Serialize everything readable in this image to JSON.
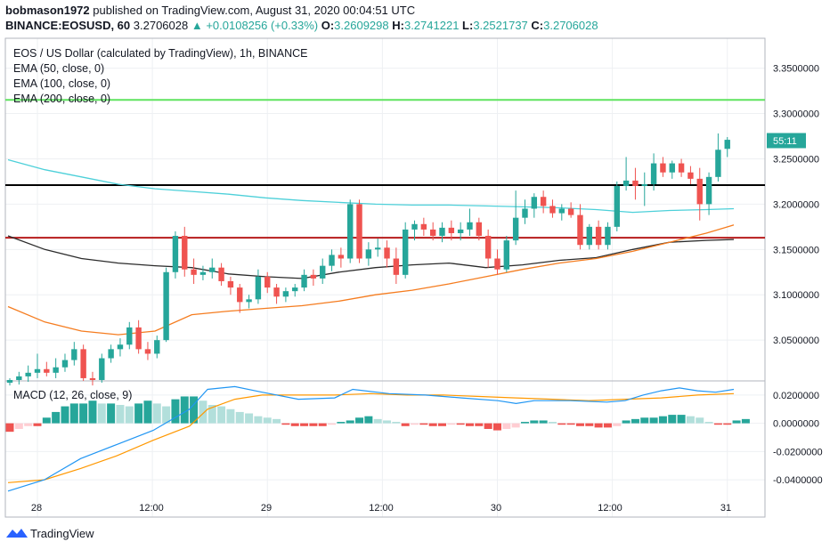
{
  "header": {
    "publisher": "bobmason1972",
    "published_text": "published on TradingView.com, August 31, 2020 00:04:51 UTC",
    "symbol": "BINANCE:EOSUSD, 60",
    "last": "3.2706028",
    "change": "▲ +0.0108256 (+0.33%)",
    "o_label": "O:",
    "o_val": "3.2609298",
    "h_label": "H:",
    "h_val": "3.2741221",
    "l_label": "L:",
    "l_val": "3.2521737",
    "c_label": "C:",
    "c_val": "3.2706028"
  },
  "legend": {
    "title": "EOS / US Dollar (calculated by TradingView), 1h, BINANCE",
    "ema50": "EMA (50, close, 0)",
    "ema100": "EMA (100, close, 0)",
    "ema200": "EMA (200, close, 0)",
    "macd": "MACD (12, 26, close, 9)"
  },
  "price_tag": "55:11",
  "footer": {
    "brand": "TradingView"
  },
  "colors": {
    "up": "#26a69a",
    "down": "#ef5350",
    "ema50": "#f57c1f",
    "ema100": "#2b2b2b",
    "ema200": "#4dd0d9",
    "support": "#b71c1c",
    "resistance": "#000000",
    "top_line": "#5fe35f",
    "macd_line": "#2196f3",
    "signal_line": "#ff9800"
  },
  "chart_data": {
    "type": "candlestick",
    "x_ticks": [
      "28",
      "12:00",
      "29",
      "12:00",
      "30",
      "12:00",
      "31"
    ],
    "y_ticks": [
      "3.3500000",
      "3.3000000",
      "3.2500000",
      "3.2000000",
      "3.1500000",
      "3.1000000",
      "3.0500000"
    ],
    "ylim": [
      3.005,
      3.383
    ],
    "horizontal_lines": [
      {
        "name": "top",
        "y": 3.315
      },
      {
        "name": "resistance",
        "y": 3.221
      },
      {
        "name": "support",
        "y": 3.163
      }
    ],
    "last_price": 3.2706028,
    "candles": [
      [
        3.003,
        3.008,
        3.0,
        3.006
      ],
      [
        3.006,
        3.015,
        3.001,
        3.01
      ],
      [
        3.01,
        3.022,
        3.004,
        3.014
      ],
      [
        3.014,
        3.035,
        3.008,
        3.018
      ],
      [
        3.018,
        3.026,
        3.01,
        3.014
      ],
      [
        3.014,
        3.03,
        3.008,
        3.02
      ],
      [
        3.02,
        3.035,
        3.015,
        3.028
      ],
      [
        3.028,
        3.048,
        3.022,
        3.04
      ],
      [
        3.04,
        3.045,
        3.005,
        3.008
      ],
      [
        3.008,
        3.015,
        3.0,
        3.006
      ],
      [
        3.006,
        3.035,
        3.003,
        3.03
      ],
      [
        3.03,
        3.045,
        3.025,
        3.04
      ],
      [
        3.04,
        3.052,
        3.032,
        3.045
      ],
      [
        3.045,
        3.07,
        3.04,
        3.064
      ],
      [
        3.064,
        3.072,
        3.035,
        3.04
      ],
      [
        3.04,
        3.048,
        3.028,
        3.035
      ],
      [
        3.035,
        3.055,
        3.03,
        3.05
      ],
      [
        3.05,
        3.13,
        3.048,
        3.125
      ],
      [
        3.125,
        3.17,
        3.118,
        3.165
      ],
      [
        3.165,
        3.175,
        3.12,
        3.128
      ],
      [
        3.128,
        3.14,
        3.112,
        3.122
      ],
      [
        3.122,
        3.132,
        3.116,
        3.125
      ],
      [
        3.125,
        3.14,
        3.118,
        3.13
      ],
      [
        3.13,
        3.135,
        3.11,
        3.115
      ],
      [
        3.115,
        3.12,
        3.1,
        3.108
      ],
      [
        3.108,
        3.112,
        3.08,
        3.092
      ],
      [
        3.092,
        3.1,
        3.085,
        3.095
      ],
      [
        3.095,
        3.128,
        3.09,
        3.12
      ],
      [
        3.12,
        3.125,
        3.102,
        3.108
      ],
      [
        3.108,
        3.112,
        3.09,
        3.098
      ],
      [
        3.098,
        3.108,
        3.092,
        3.104
      ],
      [
        3.104,
        3.112,
        3.098,
        3.108
      ],
      [
        3.108,
        3.128,
        3.104,
        3.122
      ],
      [
        3.122,
        3.128,
        3.11,
        3.118
      ],
      [
        3.118,
        3.14,
        3.112,
        3.132
      ],
      [
        3.132,
        3.15,
        3.126,
        3.144
      ],
      [
        3.144,
        3.152,
        3.13,
        3.14
      ],
      [
        3.14,
        3.205,
        3.135,
        3.2
      ],
      [
        3.2,
        3.205,
        3.135,
        3.14
      ],
      [
        3.14,
        3.158,
        3.132,
        3.15
      ],
      [
        3.15,
        3.162,
        3.142,
        3.152
      ],
      [
        3.152,
        3.16,
        3.13,
        3.14
      ],
      [
        3.14,
        3.152,
        3.112,
        3.122
      ],
      [
        3.122,
        3.18,
        3.118,
        3.172
      ],
      [
        3.172,
        3.182,
        3.16,
        3.178
      ],
      [
        3.178,
        3.185,
        3.165,
        3.172
      ],
      [
        3.172,
        3.18,
        3.16,
        3.165
      ],
      [
        3.165,
        3.18,
        3.158,
        3.174
      ],
      [
        3.174,
        3.182,
        3.16,
        3.168
      ],
      [
        3.168,
        3.18,
        3.16,
        3.172
      ],
      [
        3.172,
        3.195,
        3.165,
        3.18
      ],
      [
        3.18,
        3.185,
        3.16,
        3.165
      ],
      [
        3.165,
        3.172,
        3.13,
        3.14
      ],
      [
        3.14,
        3.15,
        3.122,
        3.128
      ],
      [
        3.128,
        3.165,
        3.125,
        3.16
      ],
      [
        3.16,
        3.215,
        3.155,
        3.185
      ],
      [
        3.185,
        3.205,
        3.178,
        3.195
      ],
      [
        3.195,
        3.212,
        3.185,
        3.208
      ],
      [
        3.208,
        3.215,
        3.19,
        3.198
      ],
      [
        3.198,
        3.205,
        3.185,
        3.19
      ],
      [
        3.19,
        3.2,
        3.182,
        3.195
      ],
      [
        3.195,
        3.202,
        3.185,
        3.188
      ],
      [
        3.188,
        3.2,
        3.15,
        3.155
      ],
      [
        3.155,
        3.178,
        3.15,
        3.175
      ],
      [
        3.175,
        3.182,
        3.15,
        3.155
      ],
      [
        3.155,
        3.18,
        3.15,
        3.175
      ],
      [
        3.175,
        3.225,
        3.17,
        3.22
      ],
      [
        3.22,
        3.252,
        3.215,
        3.226
      ],
      [
        3.226,
        3.24,
        3.205,
        3.22
      ],
      [
        3.22,
        3.235,
        3.198,
        3.222
      ],
      [
        3.222,
        3.256,
        3.215,
        3.245
      ],
      [
        3.245,
        3.252,
        3.23,
        3.235
      ],
      [
        3.235,
        3.248,
        3.228,
        3.245
      ],
      [
        3.245,
        3.25,
        3.23,
        3.235
      ],
      [
        3.235,
        3.242,
        3.222,
        3.228
      ],
      [
        3.228,
        3.24,
        3.182,
        3.2
      ],
      [
        3.2,
        3.235,
        3.188,
        3.23
      ],
      [
        3.23,
        3.278,
        3.225,
        3.26
      ],
      [
        3.261,
        3.274,
        3.252,
        3.271
      ]
    ],
    "ema50": [
      [
        0,
        3.165
      ],
      [
        4,
        3.15
      ],
      [
        8,
        3.14
      ],
      [
        12,
        3.135
      ],
      [
        16,
        3.132
      ],
      [
        20,
        3.13
      ],
      [
        24,
        3.123
      ],
      [
        28,
        3.12
      ],
      [
        32,
        3.118
      ],
      [
        36,
        3.125
      ],
      [
        40,
        3.13
      ],
      [
        44,
        3.133
      ],
      [
        48,
        3.135
      ],
      [
        52,
        3.13
      ],
      [
        56,
        3.133
      ],
      [
        60,
        3.138
      ],
      [
        64,
        3.141
      ],
      [
        68,
        3.15
      ],
      [
        72,
        3.158
      ],
      [
        76,
        3.16
      ],
      [
        79,
        3.161
      ]
    ],
    "ema100": [
      [
        0,
        3.249
      ],
      [
        4,
        3.238
      ],
      [
        8,
        3.23
      ],
      [
        12,
        3.222
      ],
      [
        16,
        3.217
      ],
      [
        20,
        3.214
      ],
      [
        24,
        3.211
      ],
      [
        28,
        3.207
      ],
      [
        32,
        3.204
      ],
      [
        36,
        3.202
      ],
      [
        40,
        3.2
      ],
      [
        44,
        3.199
      ],
      [
        48,
        3.199
      ],
      [
        52,
        3.198
      ],
      [
        56,
        3.197
      ],
      [
        60,
        3.196
      ],
      [
        64,
        3.194
      ],
      [
        68,
        3.191
      ],
      [
        72,
        3.193
      ],
      [
        76,
        3.194
      ],
      [
        79,
        3.195
      ]
    ],
    "ema200": [
      [
        0,
        3.087
      ],
      [
        4,
        3.07
      ],
      [
        8,
        3.06
      ],
      [
        12,
        3.056
      ],
      [
        16,
        3.06
      ],
      [
        20,
        3.078
      ],
      [
        24,
        3.082
      ],
      [
        28,
        3.085
      ],
      [
        32,
        3.088
      ],
      [
        36,
        3.093
      ],
      [
        40,
        3.1
      ],
      [
        44,
        3.105
      ],
      [
        48,
        3.112
      ],
      [
        52,
        3.12
      ],
      [
        56,
        3.128
      ],
      [
        60,
        3.135
      ],
      [
        64,
        3.14
      ],
      [
        68,
        3.148
      ],
      [
        72,
        3.158
      ],
      [
        76,
        3.168
      ],
      [
        79,
        3.177
      ]
    ],
    "macd": {
      "y_ticks": [
        "0.0200000",
        "0.0000000",
        "-0.0200000",
        "-0.0400000"
      ],
      "ylim": [
        -0.05,
        0.03
      ],
      "histogram": [
        -0.006,
        -0.004,
        -0.002,
        -0.002,
        0.004,
        0.008,
        0.012,
        0.014,
        0.014,
        0.016,
        0.014,
        0.014,
        0.013,
        0.012,
        0.014,
        0.016,
        0.014,
        0.012,
        0.017,
        0.019,
        0.019,
        0.016,
        0.013,
        0.012,
        0.01,
        0.008,
        0.007,
        0.005,
        0.004,
        0.003,
        -0.001,
        -0.002,
        -0.002,
        -0.002,
        -0.002,
        -0.001,
        0.001,
        0.002,
        0.004,
        0.005,
        0.003,
        0.002,
        0.001,
        -0.002,
        -0.001,
        -0.001,
        -0.002,
        -0.002,
        -0.001,
        -0.001,
        -0.002,
        -0.002,
        -0.004,
        -0.005,
        -0.004,
        -0.003,
        0.001,
        0.002,
        0.002,
        0.001,
        -0.001,
        -0.001,
        -0.002,
        -0.002,
        -0.003,
        -0.003,
        -0.002,
        0.002,
        0.003,
        0.004,
        0.004,
        0.005,
        0.006,
        0.006,
        0.005,
        0.004,
        0.001,
        -0.001,
        -0.001,
        0.002,
        0.003
      ],
      "macd_line": [
        [
          0,
          -0.048
        ],
        [
          4,
          -0.04
        ],
        [
          8,
          -0.025
        ],
        [
          12,
          -0.015
        ],
        [
          16,
          -0.005
        ],
        [
          20,
          0.01
        ],
        [
          22,
          0.024
        ],
        [
          25,
          0.026
        ],
        [
          28,
          0.022
        ],
        [
          32,
          0.017
        ],
        [
          36,
          0.018
        ],
        [
          38,
          0.024
        ],
        [
          42,
          0.021
        ],
        [
          46,
          0.02
        ],
        [
          50,
          0.018
        ],
        [
          54,
          0.016
        ],
        [
          56,
          0.014
        ],
        [
          58,
          0.016
        ],
        [
          62,
          0.016
        ],
        [
          66,
          0.015
        ],
        [
          68,
          0.016
        ],
        [
          70,
          0.02
        ],
        [
          72,
          0.023
        ],
        [
          74,
          0.025
        ],
        [
          76,
          0.023
        ],
        [
          78,
          0.022
        ],
        [
          80,
          0.024
        ]
      ],
      "signal_line": [
        [
          0,
          -0.042
        ],
        [
          4,
          -0.04
        ],
        [
          8,
          -0.032
        ],
        [
          12,
          -0.023
        ],
        [
          16,
          -0.012
        ],
        [
          20,
          -0.002
        ],
        [
          22,
          0.01
        ],
        [
          25,
          0.017
        ],
        [
          28,
          0.02
        ],
        [
          32,
          0.02
        ],
        [
          36,
          0.02
        ],
        [
          40,
          0.021
        ],
        [
          44,
          0.02
        ],
        [
          48,
          0.02
        ],
        [
          52,
          0.019
        ],
        [
          56,
          0.018
        ],
        [
          60,
          0.017
        ],
        [
          64,
          0.016
        ],
        [
          68,
          0.017
        ],
        [
          72,
          0.018
        ],
        [
          76,
          0.02
        ],
        [
          80,
          0.021
        ]
      ]
    }
  }
}
